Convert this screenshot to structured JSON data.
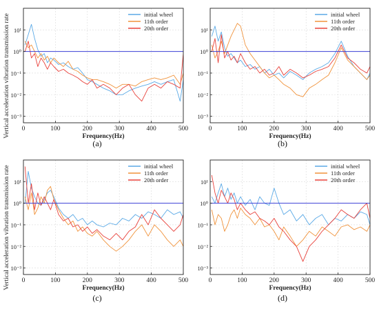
{
  "chart_data": [
    {
      "type": "line",
      "panel_label": "(a)",
      "xlabel": "Frequency(Hz)",
      "ylabel": "Vertical acceleration vibration transmission rate",
      "xlim": [
        0,
        500
      ],
      "ylim": [
        0.0005,
        100
      ],
      "yscale": "log",
      "x_ticks": [
        0,
        100,
        200,
        300,
        400,
        500
      ],
      "y_ticks": [
        {
          "value": 0.001,
          "label": "10⁻³"
        },
        {
          "value": 0.01,
          "label": "10⁻²"
        },
        {
          "value": 0.1,
          "label": "10⁻¹"
        },
        {
          "value": 1,
          "label": "10⁰"
        },
        {
          "value": 10,
          "label": "10¹"
        }
      ],
      "grid": true,
      "legend_position": "top-right",
      "reference_line": 1,
      "series": [
        {
          "name": "initial wheel",
          "color": "#5aa9e6",
          "x": [
            5,
            15,
            25,
            35,
            45,
            55,
            65,
            75,
            85,
            95,
            110,
            125,
            140,
            155,
            170,
            185,
            200,
            215,
            230,
            250,
            270,
            290,
            310,
            330,
            350,
            370,
            390,
            410,
            430,
            450,
            470,
            490,
            500
          ],
          "y": [
            2,
            6,
            18,
            4,
            1.2,
            0.6,
            0.8,
            0.3,
            0.5,
            0.4,
            0.25,
            0.3,
            0.2,
            0.15,
            0.18,
            0.1,
            0.05,
            0.04,
            0.03,
            0.02,
            0.015,
            0.01,
            0.01,
            0.015,
            0.02,
            0.025,
            0.03,
            0.04,
            0.03,
            0.04,
            0.05,
            0.005,
            0.05
          ]
        },
        {
          "name": "11th order",
          "color": "#f0923a",
          "x": [
            5,
            15,
            25,
            35,
            45,
            55,
            65,
            75,
            85,
            95,
            110,
            125,
            140,
            155,
            170,
            185,
            200,
            215,
            230,
            250,
            270,
            290,
            310,
            330,
            350,
            370,
            390,
            410,
            430,
            450,
            470,
            490,
            500
          ],
          "y": [
            3,
            1.5,
            2,
            1,
            0.5,
            0.8,
            0.4,
            0.6,
            0.3,
            0.5,
            0.3,
            0.2,
            0.35,
            0.15,
            0.12,
            0.08,
            0.06,
            0.05,
            0.05,
            0.04,
            0.03,
            0.02,
            0.03,
            0.03,
            0.025,
            0.04,
            0.05,
            0.06,
            0.05,
            0.06,
            0.08,
            0.03,
            0.1
          ]
        },
        {
          "name": "20th order",
          "color": "#e8403a",
          "x": [
            5,
            15,
            25,
            35,
            45,
            55,
            65,
            75,
            85,
            95,
            110,
            125,
            140,
            155,
            170,
            185,
            200,
            215,
            230,
            250,
            270,
            290,
            310,
            330,
            350,
            370,
            390,
            410,
            430,
            450,
            470,
            490,
            500
          ],
          "y": [
            1,
            3,
            0.5,
            0.8,
            0.2,
            0.5,
            0.3,
            0.15,
            0.3,
            0.2,
            0.12,
            0.15,
            0.1,
            0.08,
            0.06,
            0.04,
            0.03,
            0.05,
            0.02,
            0.03,
            0.02,
            0.01,
            0.02,
            0.03,
            0.01,
            0.005,
            0.02,
            0.03,
            0.02,
            0.04,
            0.03,
            0.02,
            0.8
          ]
        }
      ]
    },
    {
      "type": "line",
      "panel_label": "(b)",
      "xlabel": "Frequency(Hz)",
      "ylabel": "",
      "xlim": [
        0,
        500
      ],
      "ylim": [
        0.0005,
        100
      ],
      "yscale": "log",
      "x_ticks": [
        0,
        100,
        200,
        300,
        400,
        500
      ],
      "y_ticks": [
        {
          "value": 0.001,
          "label": "10⁻³"
        },
        {
          "value": 0.01,
          "label": "10⁻²"
        },
        {
          "value": 0.1,
          "label": "10⁻¹"
        },
        {
          "value": 1,
          "label": "10⁰"
        },
        {
          "value": 10,
          "label": "10¹"
        }
      ],
      "grid": true,
      "legend_position": "top-right",
      "reference_line": 1,
      "series": [
        {
          "name": "initial wheel",
          "color": "#5aa9e6",
          "x": [
            5,
            15,
            25,
            35,
            45,
            55,
            65,
            75,
            85,
            95,
            110,
            125,
            140,
            155,
            170,
            185,
            200,
            215,
            230,
            250,
            270,
            290,
            310,
            330,
            350,
            370,
            390,
            410,
            430,
            450,
            470,
            490,
            500
          ],
          "y": [
            5,
            15,
            3,
            8,
            1.5,
            0.6,
            0.8,
            0.5,
            0.3,
            0.4,
            0.2,
            0.25,
            0.15,
            0.2,
            0.1,
            0.15,
            0.08,
            0.1,
            0.06,
            0.12,
            0.08,
            0.05,
            0.1,
            0.15,
            0.2,
            0.3,
            0.8,
            3,
            0.6,
            0.2,
            0.1,
            0.05,
            0.1
          ]
        },
        {
          "name": "11th order",
          "color": "#f0923a",
          "x": [
            5,
            15,
            25,
            35,
            45,
            55,
            65,
            75,
            85,
            95,
            110,
            125,
            140,
            155,
            170,
            185,
            200,
            215,
            230,
            250,
            270,
            290,
            310,
            330,
            350,
            370,
            390,
            410,
            430,
            450,
            470,
            490,
            500
          ],
          "y": [
            2,
            0.5,
            1,
            3,
            0.8,
            2,
            5,
            10,
            20,
            15,
            2,
            0.8,
            0.4,
            0.2,
            0.1,
            0.06,
            0.08,
            0.05,
            0.03,
            0.02,
            0.01,
            0.008,
            0.02,
            0.03,
            0.05,
            0.08,
            0.3,
            1.5,
            0.4,
            0.2,
            0.1,
            0.05,
            0.08
          ]
        },
        {
          "name": "20th order",
          "color": "#e8403a",
          "x": [
            5,
            15,
            25,
            35,
            45,
            55,
            65,
            75,
            85,
            95,
            110,
            125,
            140,
            155,
            170,
            185,
            200,
            215,
            230,
            250,
            270,
            290,
            310,
            330,
            350,
            370,
            390,
            410,
            430,
            450,
            470,
            490,
            500
          ],
          "y": [
            1,
            4,
            0.3,
            6,
            0.5,
            1,
            0.4,
            0.6,
            0.3,
            0.8,
            0.3,
            0.15,
            0.2,
            0.1,
            0.15,
            0.08,
            0.1,
            0.2,
            0.08,
            0.15,
            0.1,
            0.06,
            0.08,
            0.12,
            0.15,
            0.2,
            0.5,
            2,
            0.5,
            0.3,
            0.15,
            0.1,
            0.2
          ]
        }
      ]
    },
    {
      "type": "line",
      "panel_label": "(c)",
      "xlabel": "Frequency(Hz)",
      "ylabel": "Vertical acceleration vibration transmission rate",
      "xlim": [
        0,
        500
      ],
      "ylim": [
        0.0005,
        100
      ],
      "yscale": "log",
      "x_ticks": [
        0,
        100,
        200,
        300,
        400,
        500
      ],
      "y_ticks": [
        {
          "value": 0.001,
          "label": "10⁻³"
        },
        {
          "value": 0.01,
          "label": "10⁻²"
        },
        {
          "value": 0.1,
          "label": "10⁻¹"
        },
        {
          "value": 1,
          "label": "10⁰"
        },
        {
          "value": 10,
          "label": "10¹"
        }
      ],
      "grid": true,
      "legend_position": "top-right",
      "reference_line": 1,
      "series": [
        {
          "name": "initial wheel",
          "color": "#5aa9e6",
          "x": [
            5,
            15,
            25,
            35,
            45,
            55,
            65,
            75,
            85,
            95,
            110,
            125,
            140,
            155,
            170,
            185,
            200,
            215,
            230,
            250,
            270,
            290,
            310,
            330,
            350,
            370,
            390,
            410,
            430,
            450,
            470,
            490,
            500
          ],
          "y": [
            1,
            30,
            5,
            2,
            1,
            0.8,
            1.5,
            3,
            4,
            2,
            0.6,
            0.3,
            0.2,
            0.3,
            0.15,
            0.2,
            0.1,
            0.15,
            0.1,
            0.08,
            0.12,
            0.1,
            0.2,
            0.15,
            0.3,
            0.2,
            0.4,
            0.3,
            0.2,
            0.5,
            0.3,
            0.4,
            0.2
          ]
        },
        {
          "name": "11th order",
          "color": "#f0923a",
          "x": [
            5,
            15,
            25,
            35,
            45,
            55,
            65,
            75,
            85,
            95,
            110,
            125,
            140,
            155,
            170,
            185,
            200,
            215,
            230,
            250,
            270,
            290,
            310,
            330,
            350,
            370,
            390,
            410,
            430,
            450,
            470,
            490,
            500
          ],
          "y": [
            2,
            0.5,
            3,
            0.3,
            0.6,
            2,
            1,
            4,
            6,
            1.5,
            0.5,
            0.2,
            0.1,
            0.15,
            0.05,
            0.08,
            0.04,
            0.03,
            0.05,
            0.02,
            0.01,
            0.006,
            0.01,
            0.02,
            0.05,
            0.1,
            0.03,
            0.1,
            0.05,
            0.02,
            0.01,
            0.02,
            0.01
          ]
        },
        {
          "name": "20th order",
          "color": "#e8403a",
          "x": [
            5,
            15,
            25,
            35,
            45,
            55,
            65,
            75,
            85,
            95,
            110,
            125,
            140,
            155,
            170,
            185,
            200,
            215,
            230,
            250,
            270,
            290,
            310,
            330,
            350,
            370,
            390,
            410,
            430,
            450,
            470,
            490,
            500
          ],
          "y": [
            50,
            1,
            8,
            0.5,
            3,
            0.8,
            2,
            1,
            0.5,
            1.5,
            0.3,
            0.15,
            0.2,
            0.08,
            0.1,
            0.05,
            0.08,
            0.04,
            0.06,
            0.03,
            0.02,
            0.04,
            0.02,
            0.05,
            0.08,
            0.3,
            0.1,
            0.5,
            0.2,
            0.1,
            0.05,
            0.1,
            0.3
          ]
        }
      ]
    },
    {
      "type": "line",
      "panel_label": "(d)",
      "xlabel": "Frequency(Hz)",
      "ylabel": "",
      "xlim": [
        0,
        500
      ],
      "ylim": [
        0.0005,
        100
      ],
      "yscale": "log",
      "x_ticks": [
        0,
        100,
        200,
        300,
        400,
        500
      ],
      "y_ticks": [
        {
          "value": 0.001,
          "label": "10⁻³"
        },
        {
          "value": 0.01,
          "label": "10⁻²"
        },
        {
          "value": 0.1,
          "label": "10⁻¹"
        },
        {
          "value": 1,
          "label": "10⁰"
        },
        {
          "value": 10,
          "label": "10¹"
        }
      ],
      "grid": true,
      "legend_position": "top-right",
      "reference_line": 1,
      "series": [
        {
          "name": "initial wheel",
          "color": "#5aa9e6",
          "x": [
            5,
            15,
            25,
            35,
            45,
            55,
            65,
            75,
            85,
            95,
            110,
            125,
            140,
            155,
            170,
            185,
            200,
            215,
            230,
            250,
            270,
            290,
            310,
            330,
            350,
            370,
            390,
            410,
            430,
            450,
            470,
            490,
            500
          ],
          "y": [
            2,
            1,
            3,
            8,
            2,
            5,
            1.5,
            3,
            1,
            2,
            0.8,
            1.5,
            0.5,
            2,
            1,
            0.8,
            5,
            1,
            0.3,
            0.5,
            0.15,
            0.3,
            0.1,
            0.2,
            0.3,
            0.1,
            0.2,
            0.15,
            0.3,
            0.2,
            0.4,
            0.3,
            0.1
          ]
        },
        {
          "name": "11th order",
          "color": "#f0923a",
          "x": [
            5,
            15,
            25,
            35,
            45,
            55,
            65,
            75,
            85,
            95,
            110,
            125,
            140,
            155,
            170,
            185,
            200,
            215,
            230,
            250,
            270,
            290,
            310,
            330,
            350,
            370,
            390,
            410,
            430,
            450,
            470,
            490,
            500
          ],
          "y": [
            0.5,
            0.1,
            0.3,
            0.2,
            0.05,
            0.1,
            0.3,
            0.5,
            0.2,
            0.6,
            0.3,
            0.2,
            0.1,
            0.2,
            0.08,
            0.1,
            0.05,
            0.02,
            0.08,
            0.03,
            0.01,
            0.02,
            0.05,
            0.03,
            0.08,
            0.05,
            0.03,
            0.08,
            0.1,
            0.06,
            0.08,
            0.05,
            0.1
          ]
        },
        {
          "name": "20th order",
          "color": "#e8403a",
          "x": [
            5,
            15,
            25,
            35,
            45,
            55,
            65,
            75,
            85,
            95,
            110,
            125,
            140,
            155,
            170,
            185,
            200,
            215,
            230,
            250,
            270,
            290,
            310,
            330,
            350,
            370,
            390,
            410,
            430,
            450,
            470,
            490,
            500
          ],
          "y": [
            20,
            3,
            1,
            4,
            2,
            1,
            3,
            1.5,
            0.5,
            1,
            0.5,
            0.3,
            0.4,
            0.2,
            0.15,
            0.1,
            0.2,
            0.08,
            0.05,
            0.02,
            0.01,
            0.002,
            0.01,
            0.02,
            0.05,
            0.1,
            0.2,
            0.5,
            0.3,
            0.2,
            0.5,
            1,
            0.2
          ]
        }
      ]
    }
  ]
}
